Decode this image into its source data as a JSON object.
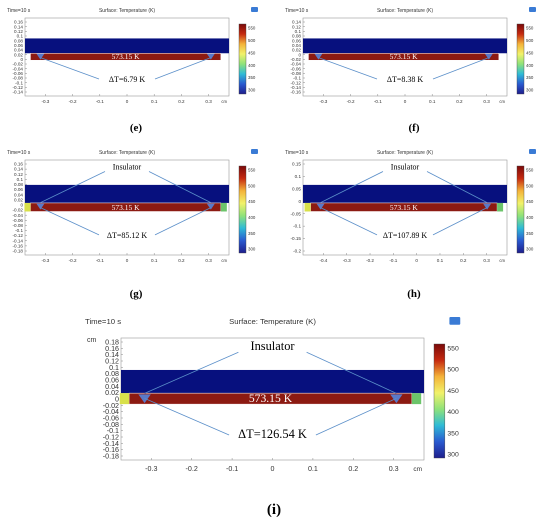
{
  "figure": {
    "panels": [
      {
        "id": "e",
        "caption": "(e)",
        "time_label": "Time=10 s",
        "plot_title": "Surface: Temperature (K)",
        "unit_label": "cm",
        "y_ticks": [
          "0.16",
          "0.14",
          "0.12",
          "0.1",
          "0.08",
          "0.06",
          "0.04",
          "0.02",
          "0",
          "-0.02",
          "-0.04",
          "-0.06",
          "-0.08",
          "-0.1",
          "-0.12",
          "-0.14"
        ],
        "x_ticks": [
          "-0.3",
          "-0.2",
          "-0.1",
          "0",
          "0.1",
          "0.2",
          "0.3"
        ],
        "colorbar_ticks": [
          "550",
          "500",
          "450",
          "400",
          "350",
          "300"
        ],
        "heater_label": "573.15 K",
        "delta_label": "ΔT=6.79 K",
        "insulator_label": ""
      },
      {
        "id": "f",
        "caption": "(f)",
        "time_label": "Time=10 s",
        "plot_title": "Surface: Temperature (K)",
        "unit_label": "cm",
        "y_ticks": [
          "0.14",
          "0.12",
          "0.1",
          "0.08",
          "0.06",
          "0.04",
          "0.02",
          "0",
          "-0.02",
          "-0.04",
          "-0.06",
          "-0.08",
          "-0.1",
          "-0.12",
          "-0.14",
          "-0.16"
        ],
        "x_ticks": [
          "-0.3",
          "-0.2",
          "-0.1",
          "0",
          "0.1",
          "0.2",
          "0.3"
        ],
        "colorbar_ticks": [
          "550",
          "500",
          "450",
          "400",
          "350",
          "300"
        ],
        "heater_label": "573.15 K",
        "delta_label": "ΔT=8.38 K",
        "insulator_label": ""
      },
      {
        "id": "g",
        "caption": "(g)",
        "time_label": "Time=10 s",
        "plot_title": "Surface: Temperature (K)",
        "unit_label": "cm",
        "y_ticks": [
          "0.16",
          "0.14",
          "0.12",
          "0.1",
          "0.08",
          "0.06",
          "0.04",
          "0.02",
          "0",
          "-0.02",
          "-0.04",
          "-0.06",
          "-0.08",
          "-0.1",
          "-0.12",
          "-0.14",
          "-0.16",
          "-0.18"
        ],
        "x_ticks": [
          "-0.3",
          "-0.2",
          "-0.1",
          "0",
          "0.1",
          "0.2",
          "0.3"
        ],
        "colorbar_ticks": [
          "550",
          "500",
          "450",
          "400",
          "350",
          "300"
        ],
        "heater_label": "573.15 K",
        "delta_label": "ΔT=85.12 K",
        "insulator_label": "Insulator"
      },
      {
        "id": "h",
        "caption": "(h)",
        "time_label": "Time=10 s",
        "plot_title": "Surface: Temperature (K)",
        "unit_label": "cm",
        "y_ticks": [
          "0.15",
          "0.1",
          "0.05",
          "0",
          "-0.05",
          "-0.1",
          "-0.15",
          "-0.2"
        ],
        "x_ticks": [
          "-0.4",
          "-0.3",
          "-0.2",
          "-0.1",
          "0",
          "0.1",
          "0.2",
          "0.3"
        ],
        "colorbar_ticks": [
          "550",
          "500",
          "450",
          "400",
          "350",
          "300"
        ],
        "heater_label": "573.15 K",
        "delta_label": "ΔT=107.89 K",
        "insulator_label": "Insulator"
      },
      {
        "id": "i",
        "caption": "(i)",
        "time_label": "Time=10 s",
        "plot_title": "Surface: Temperature (K)",
        "unit_label": "cm",
        "y_ticks": [
          "0.18",
          "0.16",
          "0.14",
          "0.12",
          "0.1",
          "0.08",
          "0.06",
          "0.04",
          "0.02",
          "0",
          "-0.02",
          "-0.04",
          "-0.06",
          "-0.08",
          "-0.1",
          "-0.12",
          "-0.14",
          "-0.16",
          "-0.18"
        ],
        "x_ticks": [
          "-0.3",
          "-0.2",
          "-0.1",
          "0",
          "0.1",
          "0.2",
          "0.3"
        ],
        "colorbar_ticks": [
          "550",
          "500",
          "450",
          "400",
          "350",
          "300"
        ],
        "heater_label": "573.15 K",
        "delta_label": "ΔT=126.54 K",
        "insulator_label": "Insulator"
      }
    ],
    "colors": {
      "insulator": "#07107e",
      "heater": "#8c1a12",
      "arrow": "#5b8fc9",
      "triangle": "#5a79c8",
      "colormap": [
        "#7a0a0a",
        "#c62a10",
        "#f4b33a",
        "#f1f26a",
        "#8fe27a",
        "#2fbbd6",
        "#2a5ad0",
        "#1e1e8c"
      ]
    }
  }
}
